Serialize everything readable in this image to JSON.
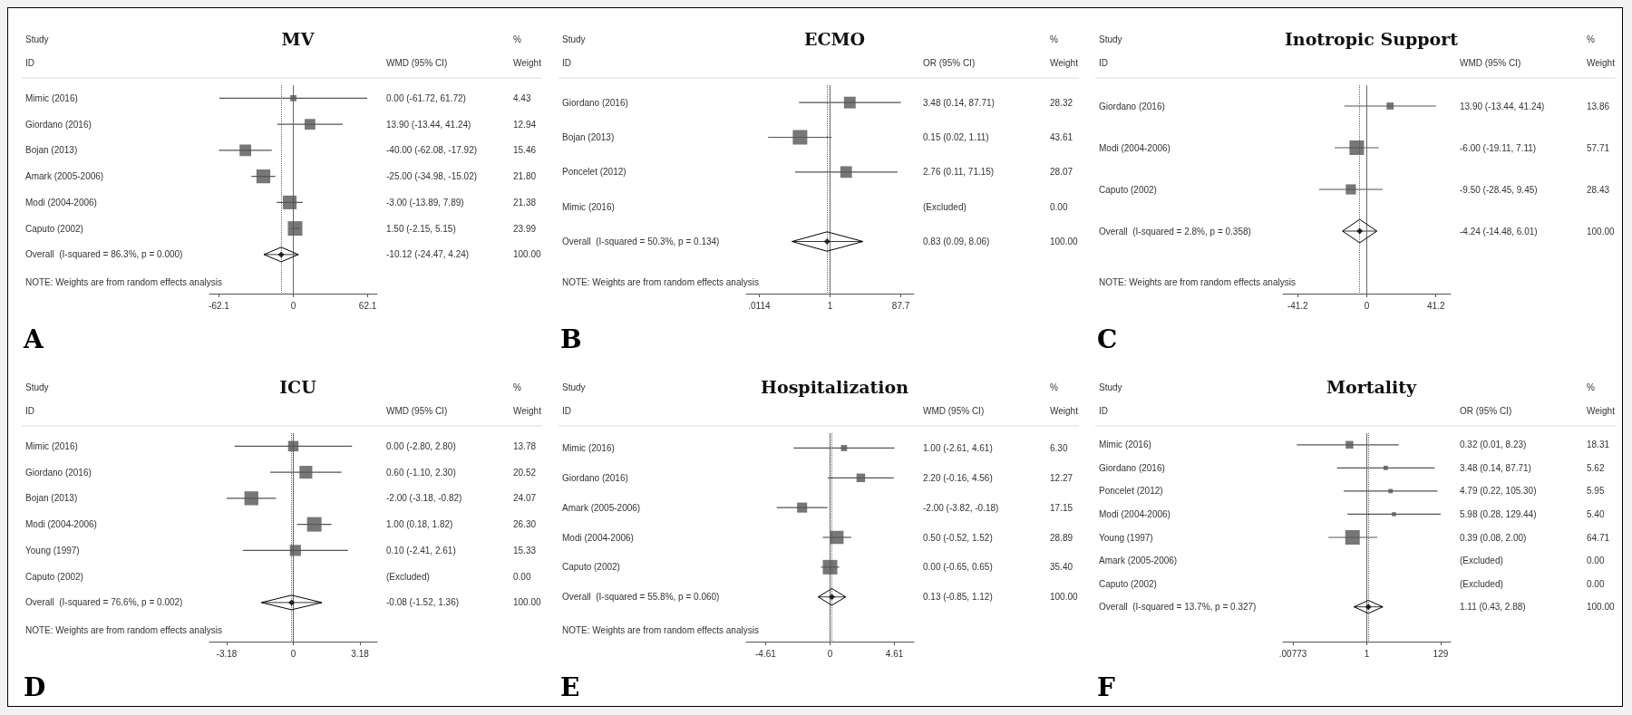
{
  "chart_data": [
    {
      "type": "scatter",
      "title": "MV",
      "subtitle": "A",
      "orientation": "horizontal",
      "categories": [
        "Mimic (2016)",
        "Giordano (2016)",
        "Bojan (2013)",
        "Amark (2005-2006)",
        "Modi (2004-2006)",
        "Caputo (2002)",
        "Overall  (I-squared = 86.3%, p = 0.000)"
      ],
      "series": [
        {
          "type": "scatter",
          "color": "#555555",
          "marker": "square",
          "values": [
            0.0,
            13.9,
            -40.0,
            -25.0,
            -3.0,
            1.5,
            null
          ],
          "errors": [
            [
              -61.72,
              61.72
            ],
            [
              -13.44,
              41.24
            ],
            [
              -62.08,
              -17.92
            ],
            [
              -34.98,
              -15.02
            ],
            [
              -13.89,
              7.89
            ],
            [
              -2.15,
              5.15
            ],
            null
          ],
          "sizes": [
            0.18,
            0.54,
            0.64,
            0.91,
            0.89,
            1,
            null
          ]
        },
        {
          "type": "scatter",
          "color": "#000000",
          "marker": "diamond",
          "values": [
            null,
            null,
            null,
            null,
            null,
            null,
            -10.12
          ],
          "errors": [
            null,
            null,
            null,
            null,
            null,
            null,
            [
              -24.47,
              4.24
            ]
          ]
        }
      ],
      "xlim": [
        -70,
        70
      ],
      "xticks": [
        -62.1,
        0,
        62.1
      ],
      "ref_lines": [
        {
          "axis": "x",
          "value": 0,
          "line_style": "solid"
        },
        {
          "axis": "x",
          "value": -10.12,
          "line_style": "dotted"
        }
      ],
      "annotations": [
        "Study",
        "ID",
        "WMD (95% CI)",
        "%",
        "Weight",
        "0.00 (-61.72, 61.72)",
        "13.90 (-13.44, 41.24)",
        "-40.00 (-62.08, -17.92)",
        "-25.00 (-34.98, -15.02)",
        "-3.00 (-13.89, 7.89)",
        "1.50 (-2.15, 5.15)",
        "-10.12 (-24.47, 4.24)",
        "4.43",
        "12.94",
        "15.46",
        "21.80",
        "21.38",
        "23.99",
        "100.00",
        "NOTE: Weights are from random effects analysis"
      ]
    },
    {
      "type": "scatter",
      "title": "ECMO",
      "subtitle": "B",
      "orientation": "horizontal",
      "log": "x",
      "categories": [
        "Giordano (2016)",
        "Bojan (2013)",
        "Poncelet (2012)",
        "Mimic (2016)",
        "Overall  (I-squared = 50.3%, p = 0.134)"
      ],
      "series": [
        {
          "type": "scatter",
          "color": "#555555",
          "marker": "square",
          "values": [
            3.48,
            0.15,
            2.76,
            null,
            null
          ],
          "errors": [
            [
              0.14,
              87.71
            ],
            [
              0.02,
              1.11
            ],
            [
              0.11,
              71.15
            ],
            null,
            null
          ],
          "sizes": [
            0.65,
            1,
            0.64,
            null,
            null
          ]
        },
        {
          "type": "scatter",
          "color": "#000000",
          "marker": "diamond",
          "values": [
            null,
            null,
            null,
            null,
            0.83
          ],
          "errors": [
            null,
            null,
            null,
            null,
            [
              0.09,
              8.06
            ]
          ]
        }
      ],
      "xlim": [
        0.005,
        200
      ],
      "xticks": [
        {
          "value": 0.0114,
          "label": ".0114"
        },
        1,
        87.7
      ],
      "ref_lines": [
        {
          "axis": "x",
          "value": 1,
          "line_style": "solid"
        },
        {
          "axis": "x",
          "value": 0.83,
          "line_style": "dotted"
        }
      ],
      "annotations": [
        "Study",
        "ID",
        "OR (95% CI)",
        "%",
        "Weight",
        "3.48 (0.14, 87.71)",
        "0.15 (0.02, 1.11)",
        "2.76 (0.11, 71.15)",
        "(Excluded)",
        "0.83 (0.09, 8.06)",
        "28.32",
        "43.61",
        "28.07",
        "0.00",
        "100.00",
        "NOTE: Weights are from random effects analysis"
      ]
    },
    {
      "type": "scatter",
      "title": "Inotropic Support",
      "subtitle": "C",
      "orientation": "horizontal",
      "categories": [
        "Giordano (2016)",
        "Modi (2004-2006)",
        "Caputo (2002)",
        "Overall  (I-squared = 2.8%, p = 0.358)"
      ],
      "series": [
        {
          "type": "scatter",
          "color": "#555555",
          "marker": "square",
          "values": [
            13.9,
            -6.0,
            -9.5,
            null
          ],
          "errors": [
            [
              -13.44,
              41.24
            ],
            [
              -19.11,
              7.11
            ],
            [
              -28.45,
              9.45
            ],
            null
          ],
          "sizes": [
            0.24,
            1,
            0.49,
            null
          ]
        },
        {
          "type": "scatter",
          "color": "#000000",
          "marker": "diamond",
          "values": [
            null,
            null,
            null,
            -4.24
          ],
          "errors": [
            null,
            null,
            null,
            [
              -14.48,
              6.01
            ]
          ]
        }
      ],
      "xlim": [
        -50,
        50
      ],
      "xticks": [
        -41.2,
        0,
        41.2
      ],
      "ref_lines": [
        {
          "axis": "x",
          "value": 0,
          "line_style": "solid"
        },
        {
          "axis": "x",
          "value": -4.24,
          "line_style": "dotted"
        }
      ],
      "annotations": [
        "Study",
        "ID",
        "WMD (95% CI)",
        "%",
        "Weight",
        "13.90 (-13.44, 41.24)",
        "-6.00 (-19.11, 7.11)",
        "-9.50 (-28.45, 9.45)",
        "-4.24 (-14.48, 6.01)",
        "13.86",
        "57.71",
        "28.43",
        "100.00",
        "NOTE: Weights are from random effects analysis"
      ]
    },
    {
      "type": "scatter",
      "title": "ICU",
      "subtitle": "D",
      "orientation": "horizontal",
      "categories": [
        "Mimic (2016)",
        "Giordano (2016)",
        "Bojan (2013)",
        "Modi (2004-2006)",
        "Young (1997)",
        "Caputo (2002)",
        "Overall  (I-squared = 76.6%, p = 0.002)"
      ],
      "series": [
        {
          "type": "scatter",
          "color": "#555555",
          "marker": "square",
          "values": [
            0.0,
            0.6,
            -2.0,
            1.0,
            0.1,
            null,
            null
          ],
          "errors": [
            [
              -2.8,
              2.8
            ],
            [
              -1.1,
              2.3
            ],
            [
              -3.18,
              -0.82
            ],
            [
              0.18,
              1.82
            ],
            [
              -2.41,
              2.61
            ],
            null,
            null
          ],
          "sizes": [
            0.52,
            0.78,
            0.92,
            1,
            0.58,
            null,
            null
          ]
        },
        {
          "type": "scatter",
          "color": "#000000",
          "marker": "diamond",
          "values": [
            null,
            null,
            null,
            null,
            null,
            null,
            -0.08
          ],
          "errors": [
            null,
            null,
            null,
            null,
            null,
            null,
            [
              -1.52,
              1.36
            ]
          ]
        }
      ],
      "xlim": [
        -4,
        4
      ],
      "xticks": [
        -3.18,
        0,
        3.18
      ],
      "ref_lines": [
        {
          "axis": "x",
          "value": 0,
          "line_style": "solid"
        },
        {
          "axis": "x",
          "value": -0.08,
          "line_style": "dotted"
        }
      ],
      "annotations": [
        "Study",
        "ID",
        "WMD (95% CI)",
        "%",
        "Weight",
        "0.00 (-2.80, 2.80)",
        "0.60 (-1.10, 2.30)",
        "-2.00 (-3.18, -0.82)",
        "1.00 (0.18, 1.82)",
        "0.10 (-2.41, 2.61)",
        "(Excluded)",
        "-0.08 (-1.52, 1.36)",
        "13.78",
        "20.52",
        "24.07",
        "26.30",
        "15.33",
        "0.00",
        "100.00",
        "NOTE: Weights are from random effects analysis"
      ]
    },
    {
      "type": "scatter",
      "title": "Hospitalization",
      "subtitle": "E",
      "orientation": "horizontal",
      "categories": [
        "Mimic (2016)",
        "Giordano (2016)",
        "Amark (2005-2006)",
        "Modi (2004-2006)",
        "Caputo (2002)",
        "Overall  (I-squared = 55.8%, p = 0.060)"
      ],
      "series": [
        {
          "type": "scatter",
          "color": "#555555",
          "marker": "square",
          "values": [
            1.0,
            2.2,
            -2.0,
            0.5,
            0.0,
            null
          ],
          "errors": [
            [
              -2.61,
              4.61
            ],
            [
              -0.16,
              4.56
            ],
            [
              -3.82,
              -0.18
            ],
            [
              -0.52,
              1.52
            ],
            [
              -0.65,
              0.65
            ],
            null
          ],
          "sizes": [
            0.18,
            0.35,
            0.48,
            0.82,
            1,
            null
          ]
        },
        {
          "type": "scatter",
          "color": "#000000",
          "marker": "diamond",
          "values": [
            null,
            null,
            null,
            null,
            null,
            0.13
          ],
          "errors": [
            null,
            null,
            null,
            null,
            null,
            [
              -0.85,
              1.12
            ]
          ]
        }
      ],
      "xlim": [
        -6,
        6
      ],
      "xticks": [
        -4.61,
        0,
        4.61
      ],
      "ref_lines": [
        {
          "axis": "x",
          "value": 0,
          "line_style": "solid"
        },
        {
          "axis": "x",
          "value": 0.13,
          "line_style": "dotted"
        }
      ],
      "annotations": [
        "Study",
        "ID",
        "WMD (95% CI)",
        "%",
        "Weight",
        "1.00 (-2.61, 4.61)",
        "2.20 (-0.16, 4.56)",
        "-2.00 (-3.82, -0.18)",
        "0.50 (-0.52, 1.52)",
        "0.00 (-0.65, 0.65)",
        "0.13 (-0.85, 1.12)",
        "6.30",
        "12.27",
        "17.15",
        "28.89",
        "35.40",
        "100.00",
        "NOTE: Weights are from random effects analysis"
      ]
    },
    {
      "type": "scatter",
      "title": "Mortality",
      "subtitle": "F",
      "orientation": "horizontal",
      "log": "x",
      "categories": [
        "Mimic (2016)",
        "Giordano (2016)",
        "Poncelet (2012)",
        "Modi (2004-2006)",
        "Young (1997)",
        "Amark (2005-2006)",
        "Caputo (2002)",
        "Overall  (I-squared = 13.7%, p = 0.327)"
      ],
      "series": [
        {
          "type": "scatter",
          "color": "#555555",
          "marker": "square",
          "values": [
            0.32,
            3.48,
            4.79,
            5.98,
            0.39,
            null,
            null,
            null
          ],
          "errors": [
            [
              0.01,
              8.23
            ],
            [
              0.14,
              87.71
            ],
            [
              0.22,
              105.3
            ],
            [
              0.28,
              129.44
            ],
            [
              0.08,
              2.0
            ],
            null,
            null,
            null
          ],
          "sizes": [
            0.28,
            0.09,
            0.09,
            0.08,
            1,
            null,
            null,
            null
          ]
        },
        {
          "type": "scatter",
          "color": "#000000",
          "marker": "diamond",
          "values": [
            null,
            null,
            null,
            null,
            null,
            null,
            null,
            1.11
          ],
          "errors": [
            null,
            null,
            null,
            null,
            null,
            null,
            null,
            [
              0.43,
              2.88
            ]
          ]
        }
      ],
      "xlim": [
        0.004,
        250
      ],
      "xticks": [
        {
          "value": 0.00773,
          "label": ".00773"
        },
        1,
        129
      ],
      "ref_lines": [
        {
          "axis": "x",
          "value": 1,
          "line_style": "solid"
        },
        {
          "axis": "x",
          "value": 1.11,
          "line_style": "dotted"
        }
      ],
      "annotations": [
        "Study",
        "ID",
        "OR (95% CI)",
        "%",
        "Weight",
        "0.32 (0.01, 8.23)",
        "3.48 (0.14, 87.71)",
        "4.79 (0.22, 105.30)",
        "5.98 (0.28, 129.44)",
        "0.39 (0.08, 2.00)",
        "(Excluded)",
        "(Excluded)",
        "1.11 (0.43, 2.88)",
        "18.31",
        "5.62",
        "5.95",
        "5.40",
        "64.71",
        "0.00",
        "0.00",
        "100.00"
      ]
    }
  ]
}
